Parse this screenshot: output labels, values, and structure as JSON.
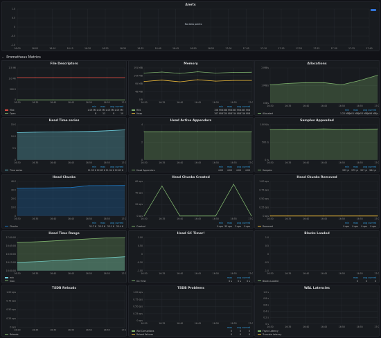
{
  "alerts": {
    "title": "Alerts",
    "no_data": "No data points",
    "y_ticks": [
      "1.0",
      "0.5",
      "0",
      "-0.5",
      "-1.0"
    ],
    "x_ticks": [
      "16:00",
      "16:05",
      "16:10",
      "16:15",
      "16:20",
      "16:25",
      "16:30",
      "16:35",
      "16:40",
      "16:45",
      "16:50",
      "16:55",
      "17:00",
      "17:05",
      "17:10",
      "17:15",
      "17:20",
      "17:25",
      "17:30",
      "17:35",
      "17:40"
    ]
  },
  "row": {
    "title": "Prometheus Metrics",
    "chevron": "⌄"
  },
  "legend_headers": [
    "min",
    "max",
    "avg",
    "current"
  ],
  "legend_headers_short": [
    "max",
    "avg",
    "current"
  ],
  "colors": {
    "green": "#7eb26d",
    "yellow": "#eab839",
    "blue": "#6ed0e0",
    "orange": "#ef843c",
    "red": "#e24d42",
    "lightblue": "#1f78c1",
    "accent": "#33a2e5",
    "bg": "#181b1f",
    "grid": "#2a2d33"
  },
  "panels": [
    {
      "title": "File Descriptors",
      "y_ticks": [
        "1.5 Mil",
        "1.0 Mil",
        "500 K",
        "0"
      ],
      "x_ticks": [
        "16:30",
        "16:35",
        "16:40",
        "16:45",
        "16:50",
        "16:55",
        "17:00"
      ],
      "legend_headers": [
        "min",
        "max",
        "avg",
        "current"
      ],
      "legend": [
        {
          "name": "Max",
          "color": "#e24d42",
          "values": [
            "1.05 Mil",
            "1.05 Mil",
            "1.05 Mil",
            "1.05 Mil"
          ]
        },
        {
          "name": "Open",
          "color": "#7eb26d",
          "values": [
            "8",
            "11",
            "9",
            "10"
          ]
        }
      ]
    },
    {
      "title": "Memory",
      "y_ticks": [
        "191 MiB",
        "143 MiB",
        "95 MiB",
        "48 MiB",
        "0 B"
      ],
      "x_ticks": [
        "16:30",
        "16:35",
        "16:40",
        "16:45",
        "16:50",
        "16:55",
        "17:00"
      ],
      "legend_headers": [
        "min",
        "max",
        "avg",
        "current"
      ],
      "legend": [
        {
          "name": "RSS",
          "color": "#7eb26d",
          "values": [
            "158 MiB",
            "168 MiB",
            "163 MiB",
            "165 MiB"
          ]
        },
        {
          "name": "Heap",
          "color": "#eab839",
          "values": [
            "107 MiB",
            "120 MiB",
            "114 MiB",
            "116 MiB"
          ]
        }
      ]
    },
    {
      "title": "Allocations",
      "y_ticks": [
        "2 MB/s",
        "1 MB/s",
        "0 B/s"
      ],
      "x_ticks": [
        "16:30",
        "16:35",
        "16:40",
        "16:45",
        "16:50",
        "16:55",
        "17:00"
      ],
      "legend_headers": [
        "min",
        "max",
        "avg",
        "current"
      ],
      "legend": [
        {
          "name": "Allocated",
          "color": "#7eb26d",
          "values": [
            "1.22 MB/s",
            "2.01 MB/s",
            "1.53 MB/s",
            "1.98 MB/s"
          ]
        }
      ]
    },
    {
      "title": "Head Time series",
      "y_ticks": [
        "15 K",
        "10 K",
        "5 K",
        "0"
      ],
      "x_ticks": [
        "16:30",
        "16:35",
        "16:40",
        "16:45",
        "16:50",
        "16:55",
        "17:00"
      ],
      "legend_headers": [
        "min",
        "max",
        "avg",
        "current"
      ],
      "legend": [
        {
          "name": "Time series",
          "color": "#6ed0e0",
          "values": [
            "11.55 K",
            "12.83 K",
            "11.94 K",
            "12.83 K"
          ]
        }
      ]
    },
    {
      "title": "Head Active Appenders",
      "y_ticks": [
        "4",
        "2",
        "0"
      ],
      "x_ticks": [
        "16:30",
        "16:35",
        "16:40",
        "16:45",
        "16:50",
        "16:55",
        "17:00"
      ],
      "legend_headers": [
        "min",
        "max",
        "avg",
        "current"
      ],
      "legend": [
        {
          "name": "Head Appenders",
          "color": "#7eb26d",
          "values": [
            "4.00",
            "4.00",
            "4.00",
            "4.00"
          ]
        }
      ]
    },
    {
      "title": "Samples Appended",
      "y_ticks": [
        "1.00 K/s",
        "500 /s",
        "0 /s"
      ],
      "x_ticks": [
        "16:30",
        "16:35",
        "16:40",
        "16:45",
        "16:50",
        "16:55",
        "17:00"
      ],
      "legend_headers": [
        "min",
        "max",
        "avg",
        "current"
      ],
      "legend": [
        {
          "name": "Samples",
          "color": "#7eb26d",
          "values": [
            "935 /s",
            "975 /s",
            "957 /s",
            "964 /s"
          ]
        }
      ]
    },
    {
      "title": "Head Chunks",
      "y_ticks": [
        "40 K",
        "30 K",
        "20 K",
        "10 K",
        "0"
      ],
      "x_ticks": [
        "16:30",
        "16:35",
        "16:40",
        "16:45",
        "16:50",
        "16:55",
        "17:00"
      ],
      "legend_headers": [
        "min",
        "max",
        "avg",
        "current"
      ],
      "legend": [
        {
          "name": "Chunks",
          "color": "#1f78c1",
          "values": [
            "31.7 K",
            "35.5 K",
            "33.1 K",
            "35.4 K"
          ]
        }
      ]
    },
    {
      "title": "Head Chunks Created",
      "y_ticks": [
        "60 ops",
        "40 ops",
        "20 ops",
        "0 ops"
      ],
      "x_ticks": [
        "16:30",
        "16:35",
        "16:40",
        "16:45",
        "16:50",
        "16:55",
        "17:00"
      ],
      "legend_headers": [
        "min",
        "max",
        "avg",
        "current"
      ],
      "legend": [
        {
          "name": "Created",
          "color": "#7eb26d",
          "values": [
            "0 ops",
            "55 ops",
            "3 ops",
            "0 ops"
          ]
        }
      ]
    },
    {
      "title": "Head Chunks Removed",
      "y_ticks": [
        "1.00 ops",
        "0.75 ops",
        "0.50 ops",
        "0.25 ops",
        "0 ops"
      ],
      "x_ticks": [
        "16:30",
        "16:35",
        "16:40",
        "16:45",
        "16:50",
        "16:55",
        "17:00"
      ],
      "legend_headers": [
        "min",
        "max",
        "avg",
        "current"
      ],
      "legend": [
        {
          "name": "Removed",
          "color": "#eab839",
          "values": [
            "0 ops",
            "0 ops",
            "0 ops",
            "0 ops"
          ]
        }
      ]
    },
    {
      "title": "Head Time Range",
      "y_ticks": [
        "17:00:00",
        "16:45:00",
        "16:30:00",
        "16:15:00",
        "16:00:00"
      ],
      "x_ticks": [
        "16:30",
        "16:35",
        "16:40",
        "16:45",
        "16:50",
        "16:55",
        "17:00"
      ],
      "legend_headers": [],
      "legend": [
        {
          "name": "min",
          "color": "#6ed0e0",
          "values": []
        },
        {
          "name": "max",
          "color": "#7eb26d",
          "values": []
        }
      ]
    },
    {
      "title": "Head GC Timer!",
      "y_ticks": [
        "1.00",
        "0.50",
        "0",
        "-0.50",
        "-1.00"
      ],
      "x_ticks": [
        "16:30",
        "16:35",
        "16:40",
        "16:45",
        "16:50",
        "16:55",
        "17:00"
      ],
      "legend_headers": [
        "max",
        "avg",
        "current"
      ],
      "legend": [
        {
          "name": "GC Time",
          "color": "#7eb26d",
          "values": [
            "0 s",
            "0 s",
            "0 s"
          ]
        }
      ]
    },
    {
      "title": "Blocks Loaded",
      "y_ticks": [
        "1.0",
        "0.5",
        "0",
        "-0.5",
        "-1.0"
      ],
      "x_ticks": [
        "16:30",
        "16:35",
        "16:40",
        "16:45",
        "16:50",
        "16:55",
        "17:00"
      ],
      "legend_headers": [
        "max",
        "avg",
        "current"
      ],
      "legend": [
        {
          "name": "Blocks Loaded",
          "color": "#7eb26d",
          "values": [
            "0",
            "0",
            "0"
          ]
        }
      ]
    },
    {
      "title": "TSDB Reloads",
      "y_ticks": [
        "1.00 ops",
        "0.75 ops",
        "0.50 ops",
        "0.25 ops",
        "0 ops"
      ],
      "x_ticks": [
        "16:30",
        "16:35",
        "16:40",
        "16:45",
        "16:50",
        "16:55",
        "17:00"
      ],
      "legend_headers": [],
      "legend": [
        {
          "name": "Reloads",
          "color": "#7eb26d",
          "values": []
        }
      ]
    },
    {
      "title": "TSDB Problems",
      "y_ticks": [
        "1.00 ops",
        "0.75 ops",
        "0.50 ops",
        "0.25 ops",
        "0 ops"
      ],
      "x_ticks": [
        "16:30",
        "16:35",
        "16:40",
        "16:45",
        "16:50",
        "16:55",
        "17:00"
      ],
      "legend_headers": [
        "max",
        "avg",
        "current"
      ],
      "legend": [
        {
          "name": "Wal Corruptions",
          "color": "#7eb26d",
          "values": [
            "0",
            "0",
            "0"
          ]
        },
        {
          "name": "Reload Failures",
          "color": "#eab839",
          "values": [
            "0",
            "0",
            "0"
          ]
        }
      ]
    },
    {
      "title": "WAL Latencies",
      "y_ticks": [
        "1.0 s",
        "0.8 s",
        "0.6 s",
        "0.4 s",
        "0.2 s",
        "0 s"
      ],
      "x_ticks": [
        "16:30",
        "16:35",
        "16:40",
        "16:45",
        "16:50",
        "16:55",
        "17:00"
      ],
      "legend_headers": [],
      "legend": [
        {
          "name": "Fsync Latency",
          "color": "#7eb26d",
          "values": []
        },
        {
          "name": "Truncate Latency",
          "color": "#eab839",
          "values": []
        }
      ]
    }
  ],
  "chart_data": [
    {
      "type": "line",
      "title": "File Descriptors",
      "x": [
        "16:30",
        "16:35",
        "16:40",
        "16:45",
        "16:50",
        "16:55",
        "17:00"
      ],
      "series": [
        {
          "name": "Max",
          "values": [
            1.05,
            1.05,
            1.05,
            1.05,
            1.05,
            1.05,
            1.05
          ]
        },
        {
          "name": "Open",
          "values": [
            1e-05,
            1e-05,
            1e-05,
            1e-05,
            1e-05,
            1e-05,
            1e-05
          ]
        }
      ],
      "ylim": [
        0,
        1.5
      ]
    },
    {
      "type": "line",
      "title": "Memory",
      "x": [
        "16:30",
        "16:35",
        "16:40",
        "16:45",
        "16:50",
        "16:55",
        "17:00"
      ],
      "series": [
        {
          "name": "RSS",
          "values": [
            160,
            166,
            158,
            168,
            160,
            164,
            165
          ]
        },
        {
          "name": "Heap",
          "values": [
            110,
            118,
            108,
            120,
            112,
            116,
            116
          ]
        }
      ],
      "ylim": [
        0,
        191
      ]
    },
    {
      "type": "area",
      "title": "Allocations",
      "x": [
        "16:30",
        "16:35",
        "16:40",
        "16:45",
        "16:50",
        "16:55",
        "17:00"
      ],
      "series": [
        {
          "name": "Allocated",
          "values": [
            1.3,
            1.4,
            1.45,
            1.45,
            1.3,
            1.6,
            1.98
          ]
        }
      ],
      "ylim": [
        0,
        2.5
      ]
    },
    {
      "type": "area",
      "title": "Head Time series",
      "x": [
        "16:30",
        "16:35",
        "16:40",
        "16:45",
        "16:50",
        "16:55",
        "17:00"
      ],
      "series": [
        {
          "name": "Time series",
          "values": [
            11.6,
            11.8,
            11.9,
            12.0,
            12.1,
            12.4,
            12.8
          ]
        }
      ],
      "ylim": [
        0,
        15
      ]
    },
    {
      "type": "area",
      "title": "Head Active Appenders",
      "x": [
        "16:30",
        "16:35",
        "16:40",
        "16:45",
        "16:50",
        "16:55",
        "17:00"
      ],
      "series": [
        {
          "name": "Head Appenders",
          "values": [
            4,
            4,
            4,
            4,
            4,
            4,
            4
          ]
        }
      ],
      "ylim": [
        0,
        5
      ]
    },
    {
      "type": "area",
      "title": "Samples Appended",
      "x": [
        "16:30",
        "16:35",
        "16:40",
        "16:45",
        "16:50",
        "16:55",
        "17:00"
      ],
      "series": [
        {
          "name": "Samples",
          "values": [
            950,
            960,
            955,
            965,
            958,
            962,
            964
          ]
        }
      ],
      "ylim": [
        0,
        1100
      ]
    },
    {
      "type": "area",
      "title": "Head Chunks",
      "x": [
        "16:30",
        "16:35",
        "16:40",
        "16:45",
        "16:50",
        "16:55",
        "17:00"
      ],
      "series": [
        {
          "name": "Chunks",
          "values": [
            32,
            32.3,
            32.6,
            33,
            35.2,
            35.3,
            35.4
          ]
        }
      ],
      "ylim": [
        0,
        40
      ]
    },
    {
      "type": "line",
      "title": "Head Chunks Created",
      "x": [
        "16:30",
        "16:35",
        "16:40",
        "16:45",
        "16:50",
        "16:55",
        "17:00"
      ],
      "series": [
        {
          "name": "Created",
          "values": [
            0,
            52,
            0,
            0,
            0,
            55,
            0
          ]
        }
      ],
      "ylim": [
        0,
        60
      ]
    },
    {
      "type": "line",
      "title": "Head Chunks Removed",
      "x": [
        "16:30",
        "16:35",
        "16:40",
        "16:45",
        "16:50",
        "16:55",
        "17:00"
      ],
      "series": [
        {
          "name": "Removed",
          "values": [
            0,
            0,
            0,
            0,
            0,
            0,
            0
          ]
        }
      ],
      "ylim": [
        0,
        1
      ]
    },
    {
      "type": "area",
      "title": "Head Time Range",
      "x": [
        "16:30",
        "16:35",
        "16:40",
        "16:45",
        "16:50",
        "16:55",
        "17:00"
      ],
      "series": [
        {
          "name": "min",
          "values": [
            16.25,
            16.27,
            16.3,
            16.33,
            16.36,
            16.39,
            16.42
          ]
        },
        {
          "name": "max",
          "values": [
            16.85,
            16.87,
            16.9,
            16.93,
            16.96,
            16.99,
            17.0
          ]
        }
      ],
      "ylim": [
        16.0,
        17.0
      ]
    }
  ]
}
